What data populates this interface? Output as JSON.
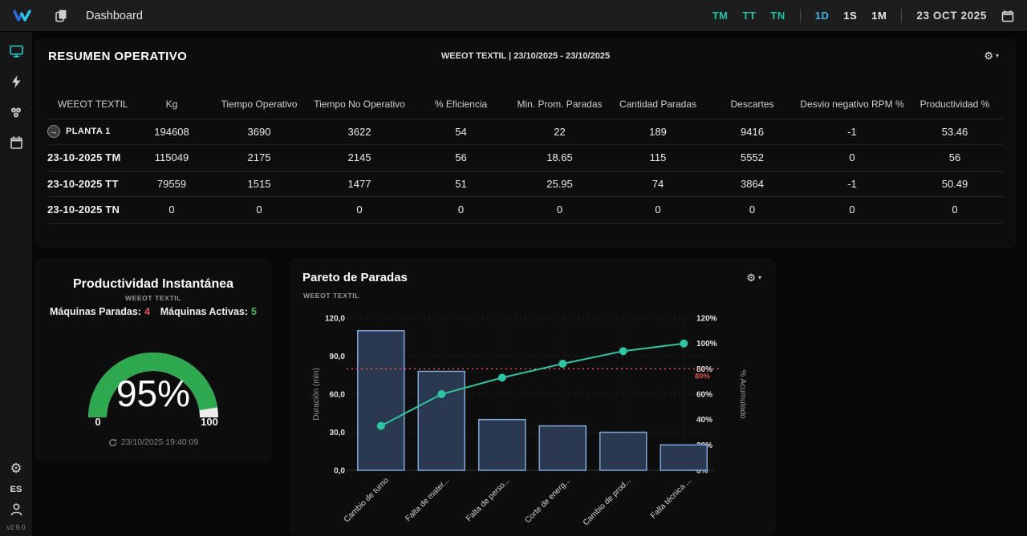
{
  "topbar": {
    "title": "Dashboard",
    "shifts": [
      {
        "label": "TM",
        "active": true
      },
      {
        "label": "TT",
        "active": true
      },
      {
        "label": "TN",
        "active": true
      }
    ],
    "periods": [
      {
        "label": "1D",
        "active": true
      },
      {
        "label": "1S",
        "active": false
      },
      {
        "label": "1M",
        "active": false
      }
    ],
    "date": "23 OCT 2025",
    "icons": [
      "weeot-logo",
      "pages-icon",
      "calendar-icon"
    ]
  },
  "sidebar": {
    "icons": [
      "monitor-icon",
      "energy-icon",
      "machines-icon",
      "calendar-icon"
    ],
    "active_icon": "monitor-icon",
    "bottom_icons": [
      "gear-icon",
      "user-icon"
    ],
    "language": "ES",
    "version": "v2.9.0"
  },
  "summary": {
    "title": "RESUMEN OPERATIVO",
    "subtitle": "WEEOT TEXTIL | 23/10/2025 - 23/10/2025",
    "columns": [
      "WEEOT TEXTIL",
      "Kg",
      "Tiempo Operativo",
      "Tiempo No Operativo",
      "% Eficiencia",
      "Min. Prom. Paradas",
      "Cantidad Paradas",
      "Descartes",
      "Desvio negativo RPM %",
      "Productividad %"
    ],
    "rows": [
      {
        "label": "PLANTA 1",
        "icon": "arrow-circle-icon",
        "values": [
          "194608",
          "3690",
          "3622",
          "54",
          "22",
          "189",
          "9416",
          "-1",
          "53.46"
        ]
      },
      {
        "label": "23-10-2025 TM",
        "values": [
          "115049",
          "2175",
          "2145",
          "56",
          "18.65",
          "115",
          "5552",
          "0",
          "56"
        ]
      },
      {
        "label": "23-10-2025 TT",
        "values": [
          "79559",
          "1515",
          "1477",
          "51",
          "25.95",
          "74",
          "3864",
          "-1",
          "50.49"
        ]
      },
      {
        "label": "23-10-2025 TN",
        "values": [
          "0",
          "0",
          "0",
          "0",
          "0",
          "0",
          "0",
          "0",
          "0"
        ]
      }
    ]
  },
  "productivity": {
    "title": "Productividad Instantánea",
    "subtitle": "WEEOT TEXTIL",
    "stopped_label": "Máquinas Paradas:",
    "stopped_value": "4",
    "active_label": "Máquinas Activas:",
    "active_value": "5",
    "gauge": {
      "percent": 95,
      "display": "95%",
      "min": "0",
      "max": "100",
      "color": "#2EA94F",
      "rest_color": "#ececec"
    },
    "updated": "23/10/2025 19:40:09"
  },
  "pareto": {
    "title": "Pareto de Paradas",
    "subtitle": "WEEOT TEXTIL"
  },
  "colors": {
    "teal_accent": "#1fc2a7",
    "period_active": "#45b5e8",
    "logo_blue": "#2f6bdf",
    "logo_cyan": "#2cc8ea",
    "stopped_red": "#e0524e",
    "active_green": "#43b75c",
    "gauge_green": "#2EA94F"
  },
  "chart_data": [
    {
      "type": "bar",
      "title": "Pareto de Paradas",
      "subtitle": "WEEOT TEXTIL",
      "categories": [
        "Cambio de turno",
        "Falta de mater...",
        "Falta de perso...",
        "Corte de energ...",
        "Cambio de prod...",
        "Falla técnica ..."
      ],
      "series": [
        {
          "name": "Duración (min)",
          "type": "bar",
          "axis": "left",
          "values": [
            110,
            78,
            40,
            35,
            30,
            20
          ]
        },
        {
          "name": "% Acumulado",
          "type": "line",
          "axis": "right",
          "values": [
            35,
            60,
            73,
            84,
            94,
            100
          ]
        }
      ],
      "ylabel_left": "Duración (min)",
      "ylabel_right": "% Acumulado",
      "ylim_left": [
        0,
        120
      ],
      "ylim_right": [
        0,
        120
      ],
      "yticks_left": [
        "0,0",
        "30,0",
        "60,0",
        "90,0",
        "120,0"
      ],
      "yticks_right": [
        "0%",
        "20%",
        "40%",
        "60%",
        "80%",
        "100%",
        "120%"
      ],
      "threshold": {
        "value": 80,
        "label": "80%",
        "color": "#d94f4f"
      },
      "grid": true,
      "legend_position": "none",
      "colors": {
        "bar_fill": "#2b3950",
        "bar_border": "#7fa8d9",
        "line": "#2fc5a2"
      }
    },
    {
      "type": "gauge",
      "title": "Productividad Instantánea",
      "value": 95,
      "min": 0,
      "max": 100,
      "unit": "%",
      "color": "#2EA94F",
      "rest_color": "#ececec"
    }
  ]
}
